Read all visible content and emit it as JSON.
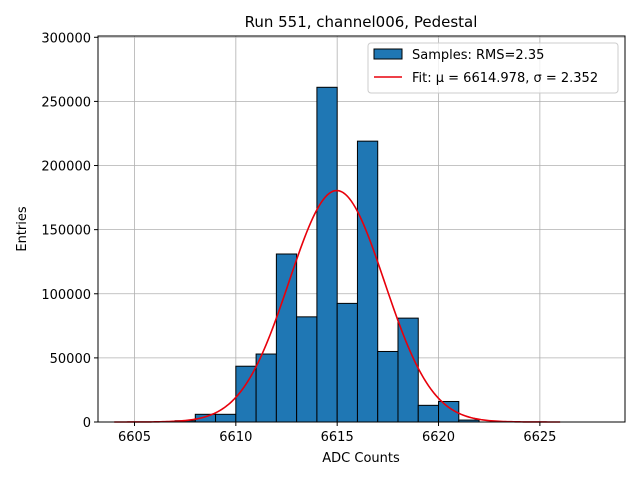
{
  "chart_data": {
    "type": "bar",
    "title": "Run 551, channel006, Pedestal",
    "xlabel": "ADC Counts",
    "ylabel": "Entries",
    "xlim": [
      6603.2,
      6629.2
    ],
    "ylim": [
      0,
      301000
    ],
    "xticks": [
      "6605",
      "6610",
      "6615",
      "6620",
      "6625"
    ],
    "yticks": [
      "0",
      "50000",
      "100000",
      "150000",
      "200000",
      "250000",
      "300000"
    ],
    "grid": true,
    "legend_position": "top-right",
    "bins": {
      "edges": [
        6607,
        6608,
        6609,
        6610,
        6611,
        6612,
        6613,
        6614,
        6615,
        6616,
        6617,
        6618,
        6619,
        6620,
        6621,
        6622
      ],
      "counts": [
        1000,
        6000,
        6000,
        43500,
        53000,
        131000,
        82000,
        261000,
        92500,
        219000,
        55000,
        81000,
        13000,
        16000,
        1500
      ]
    },
    "fit": {
      "mu": 6614.978,
      "sigma": 2.352,
      "peak": 180500,
      "x_range": [
        6604,
        6626
      ]
    },
    "series": [
      {
        "name": "Samples: RMS=2.35",
        "color": "#1f77b4",
        "kind": "histogram"
      },
      {
        "name": "Fit: μ = 6614.978, σ = 2.352",
        "color": "#e8000b",
        "kind": "line"
      }
    ]
  }
}
